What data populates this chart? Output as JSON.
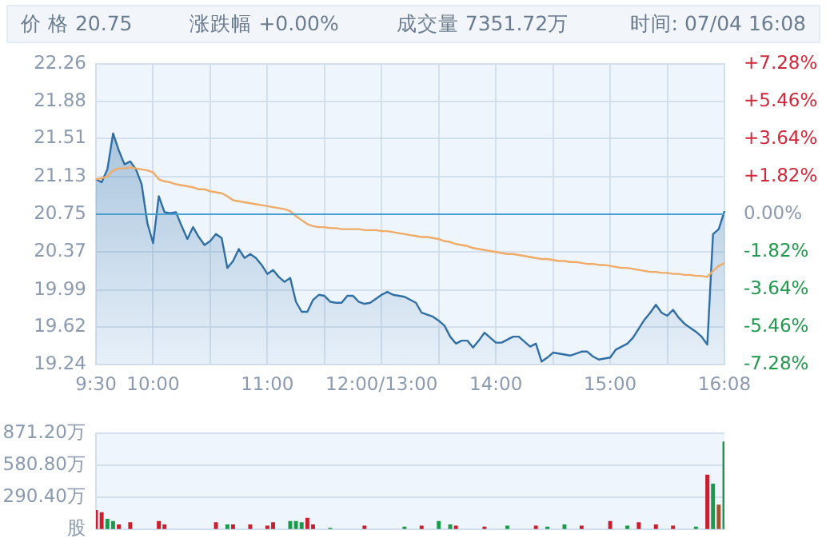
{
  "chart_data": [
    {
      "type": "line",
      "annotations": [
        "价 格 20.75",
        "涨跌幅 +0.00%",
        "成交量 7351.72万",
        "时间: 07/04 16:08"
      ],
      "categories": [
        "9:30",
        null,
        null,
        null,
        null,
        null,
        null,
        null,
        null,
        null,
        "10:00",
        null,
        null,
        null,
        null,
        null,
        null,
        null,
        null,
        null,
        null,
        null,
        null,
        null,
        null,
        null,
        null,
        null,
        null,
        null,
        "11:00",
        null,
        null,
        null,
        null,
        null,
        null,
        null,
        null,
        null,
        null,
        null,
        null,
        null,
        null,
        null,
        null,
        null,
        null,
        null,
        "12:00/13:00",
        null,
        null,
        null,
        null,
        null,
        null,
        null,
        null,
        null,
        null,
        null,
        null,
        null,
        null,
        null,
        null,
        null,
        null,
        null,
        "14:00",
        null,
        null,
        null,
        null,
        null,
        null,
        null,
        null,
        null,
        null,
        null,
        null,
        null,
        null,
        null,
        null,
        null,
        null,
        null,
        "15:00",
        null,
        null,
        null,
        null,
        null,
        null,
        null,
        null,
        null,
        null,
        null,
        null,
        null,
        null,
        null,
        null,
        null,
        null,
        null,
        "16:08"
      ],
      "series": [
        {
          "type": "area",
          "color": "#2f6fa6",
          "values": [
            21.1,
            21.07,
            21.2,
            21.56,
            21.39,
            21.25,
            21.28,
            21.2,
            21.05,
            20.66,
            20.46,
            20.93,
            20.77,
            20.76,
            20.77,
            20.63,
            20.5,
            20.62,
            20.52,
            20.44,
            20.48,
            20.55,
            20.51,
            20.21,
            20.28,
            20.4,
            20.31,
            20.35,
            20.31,
            20.24,
            20.15,
            20.19,
            20.12,
            20.07,
            20.11,
            19.87,
            19.77,
            19.77,
            19.89,
            19.94,
            19.93,
            19.87,
            19.86,
            19.86,
            19.93,
            19.93,
            19.87,
            19.85,
            19.86,
            19.9,
            19.94,
            19.97,
            19.94,
            19.93,
            19.92,
            19.89,
            19.86,
            19.76,
            19.74,
            19.72,
            19.68,
            19.63,
            19.52,
            19.45,
            19.48,
            19.48,
            19.41,
            19.48,
            19.56,
            19.51,
            19.46,
            19.46,
            19.49,
            19.52,
            19.52,
            19.47,
            19.42,
            19.45,
            19.27,
            19.31,
            19.36,
            19.35,
            19.34,
            19.33,
            19.35,
            19.37,
            19.37,
            19.32,
            19.29,
            19.3,
            19.31,
            19.39,
            19.42,
            19.45,
            19.51,
            19.6,
            19.69,
            19.76,
            19.84,
            19.76,
            19.73,
            19.79,
            19.71,
            19.65,
            19.61,
            19.57,
            19.52,
            19.44,
            20.55,
            20.6,
            20.78
          ]
        },
        {
          "color": "#f0ab67",
          "values": [
            21.1,
            21.11,
            21.13,
            21.19,
            21.21,
            21.21,
            21.22,
            21.21,
            21.2,
            21.19,
            21.17,
            21.1,
            21.08,
            21.07,
            21.05,
            21.04,
            21.03,
            21.02,
            21.0,
            21.0,
            20.98,
            20.97,
            20.96,
            20.93,
            20.89,
            20.88,
            20.87,
            20.86,
            20.85,
            20.84,
            20.83,
            20.82,
            20.81,
            20.8,
            20.78,
            20.73,
            20.69,
            20.65,
            20.63,
            20.62,
            20.62,
            20.61,
            20.61,
            20.6,
            20.6,
            20.6,
            20.6,
            20.59,
            20.59,
            20.59,
            20.58,
            20.58,
            20.57,
            20.56,
            20.55,
            20.54,
            20.53,
            20.52,
            20.52,
            20.51,
            20.5,
            20.48,
            20.47,
            20.45,
            20.44,
            20.43,
            20.41,
            20.4,
            20.39,
            20.38,
            20.37,
            20.36,
            20.35,
            20.35,
            20.34,
            20.33,
            20.32,
            20.31,
            20.3,
            20.3,
            20.29,
            20.28,
            20.28,
            20.27,
            20.27,
            20.26,
            20.25,
            20.25,
            20.24,
            20.24,
            20.23,
            20.22,
            20.21,
            20.21,
            20.2,
            20.19,
            20.18,
            20.17,
            20.17,
            20.16,
            20.16,
            20.15,
            20.15,
            20.14,
            20.14,
            20.13,
            20.13,
            20.12,
            20.18,
            20.23,
            20.26
          ]
        }
      ],
      "ylim": [
        19.24,
        22.26
      ],
      "yticks": [
        19.24,
        19.62,
        19.99,
        20.37,
        20.75,
        21.13,
        21.51,
        21.88,
        22.26
      ],
      "y2lim": [
        -7.28,
        7.28
      ],
      "y2ticks": [
        {
          "value": -7.28,
          "label": "-7.28%"
        },
        {
          "value": -5.46,
          "label": "-5.46%"
        },
        {
          "value": -3.64,
          "label": "-3.64%"
        },
        {
          "value": -1.82,
          "label": "-1.82%"
        },
        {
          "value": 0,
          "label": "0.00%"
        },
        {
          "value": 1.82,
          "label": "+1.82%"
        },
        {
          "value": 3.64,
          "label": "+3.64%"
        },
        {
          "value": 5.46,
          "label": "+5.46%"
        },
        {
          "value": 7.28,
          "label": "+7.28%"
        }
      ],
      "ref_lines": [
        {
          "axis": "y",
          "value": 20.75,
          "color": "#4a9fd0"
        }
      ],
      "grid": true,
      "legend": false,
      "marker": "none"
    },
    {
      "type": "bar",
      "categories": [
        null,
        null,
        null,
        null,
        null,
        null,
        null,
        null,
        null,
        null,
        null,
        null,
        null,
        null,
        null,
        null,
        null,
        null,
        null,
        null,
        null,
        null,
        null,
        null,
        null,
        null,
        null,
        null,
        null,
        null,
        null,
        null,
        null,
        null,
        null,
        null,
        null,
        null,
        null,
        null,
        null,
        null,
        null,
        null,
        null,
        null,
        null,
        null,
        null,
        null,
        null,
        null,
        null,
        null,
        null,
        null,
        null,
        null,
        null,
        null,
        null,
        null,
        null,
        null,
        null,
        null,
        null,
        null,
        null,
        null,
        null,
        null,
        null,
        null,
        null,
        null,
        null,
        null,
        null,
        null,
        null,
        null,
        null,
        null,
        null,
        null,
        null,
        null,
        null,
        null,
        null,
        null,
        null,
        null,
        null,
        null,
        null,
        null,
        null,
        null,
        null,
        null,
        null,
        null,
        null,
        null,
        null,
        null,
        null,
        null,
        null
      ],
      "values": [
        170,
        150,
        90,
        70,
        40,
        null,
        60,
        null,
        null,
        null,
        null,
        70,
        40,
        null,
        null,
        null,
        null,
        null,
        null,
        null,
        null,
        60,
        null,
        40,
        40,
        null,
        null,
        40,
        null,
        null,
        30,
        60,
        null,
        null,
        70,
        70,
        60,
        100,
        40,
        null,
        null,
        10,
        null,
        null,
        null,
        null,
        null,
        30,
        null,
        null,
        null,
        null,
        null,
        null,
        20,
        null,
        null,
        30,
        null,
        null,
        70,
        null,
        40,
        30,
        null,
        null,
        null,
        null,
        20,
        null,
        null,
        null,
        30,
        null,
        null,
        null,
        null,
        30,
        null,
        20,
        null,
        null,
        40,
        null,
        null,
        30,
        null,
        null,
        null,
        null,
        70,
        null,
        null,
        30,
        null,
        60,
        null,
        null,
        40,
        null,
        null,
        30,
        null,
        null,
        null,
        20,
        null,
        490,
        410,
        220,
        790
      ],
      "colors": [
        "#c8202e",
        "#c8202e",
        "#1a9a4a",
        "#1a9a4a",
        "#c8202e",
        null,
        "#c8202e",
        null,
        null,
        null,
        null,
        "#c8202e",
        "#c8202e",
        null,
        null,
        null,
        null,
        null,
        null,
        null,
        null,
        "#c8202e",
        null,
        "#1a9a4a",
        "#c8202e",
        null,
        null,
        "#c8202e",
        null,
        null,
        "#c8202e",
        "#c8202e",
        null,
        null,
        "#1a9a4a",
        "#1a9a4a",
        "#1a9a4a",
        "#c8202e",
        "#c8202e",
        null,
        null,
        "#1a9a4a",
        null,
        null,
        null,
        null,
        null,
        "#c8202e",
        null,
        null,
        null,
        null,
        null,
        null,
        "#1a9a4a",
        null,
        null,
        "#c8202e",
        null,
        null,
        "#1a9a4a",
        null,
        "#1a9a4a",
        "#c8202e",
        null,
        null,
        null,
        null,
        "#c8202e",
        null,
        null,
        null,
        "#1a9a4a",
        null,
        null,
        null,
        null,
        "#c8202e",
        null,
        "#1a9a4a",
        null,
        null,
        "#1a9a4a",
        null,
        null,
        "#c8202e",
        null,
        null,
        null,
        null,
        "#c8202e",
        null,
        null,
        "#1a9a4a",
        null,
        "#c8202e",
        null,
        null,
        "#c8202e",
        null,
        null,
        "#c8202e",
        null,
        null,
        null,
        "#1a9a4a",
        null,
        "#c8202e",
        "#1a9a4a",
        "#a0522d",
        "#1a9a4a"
      ],
      "ylim": [
        0,
        871.2
      ],
      "yticks": [
        {
          "value": 0,
          "label": "股"
        },
        {
          "value": 290.4,
          "label": "290.40万"
        },
        {
          "value": 580.8,
          "label": "580.80万"
        },
        {
          "value": 871.2,
          "label": "871.20万"
        }
      ],
      "grid": "y",
      "legend": false,
      "tick_labels": "y"
    }
  ]
}
